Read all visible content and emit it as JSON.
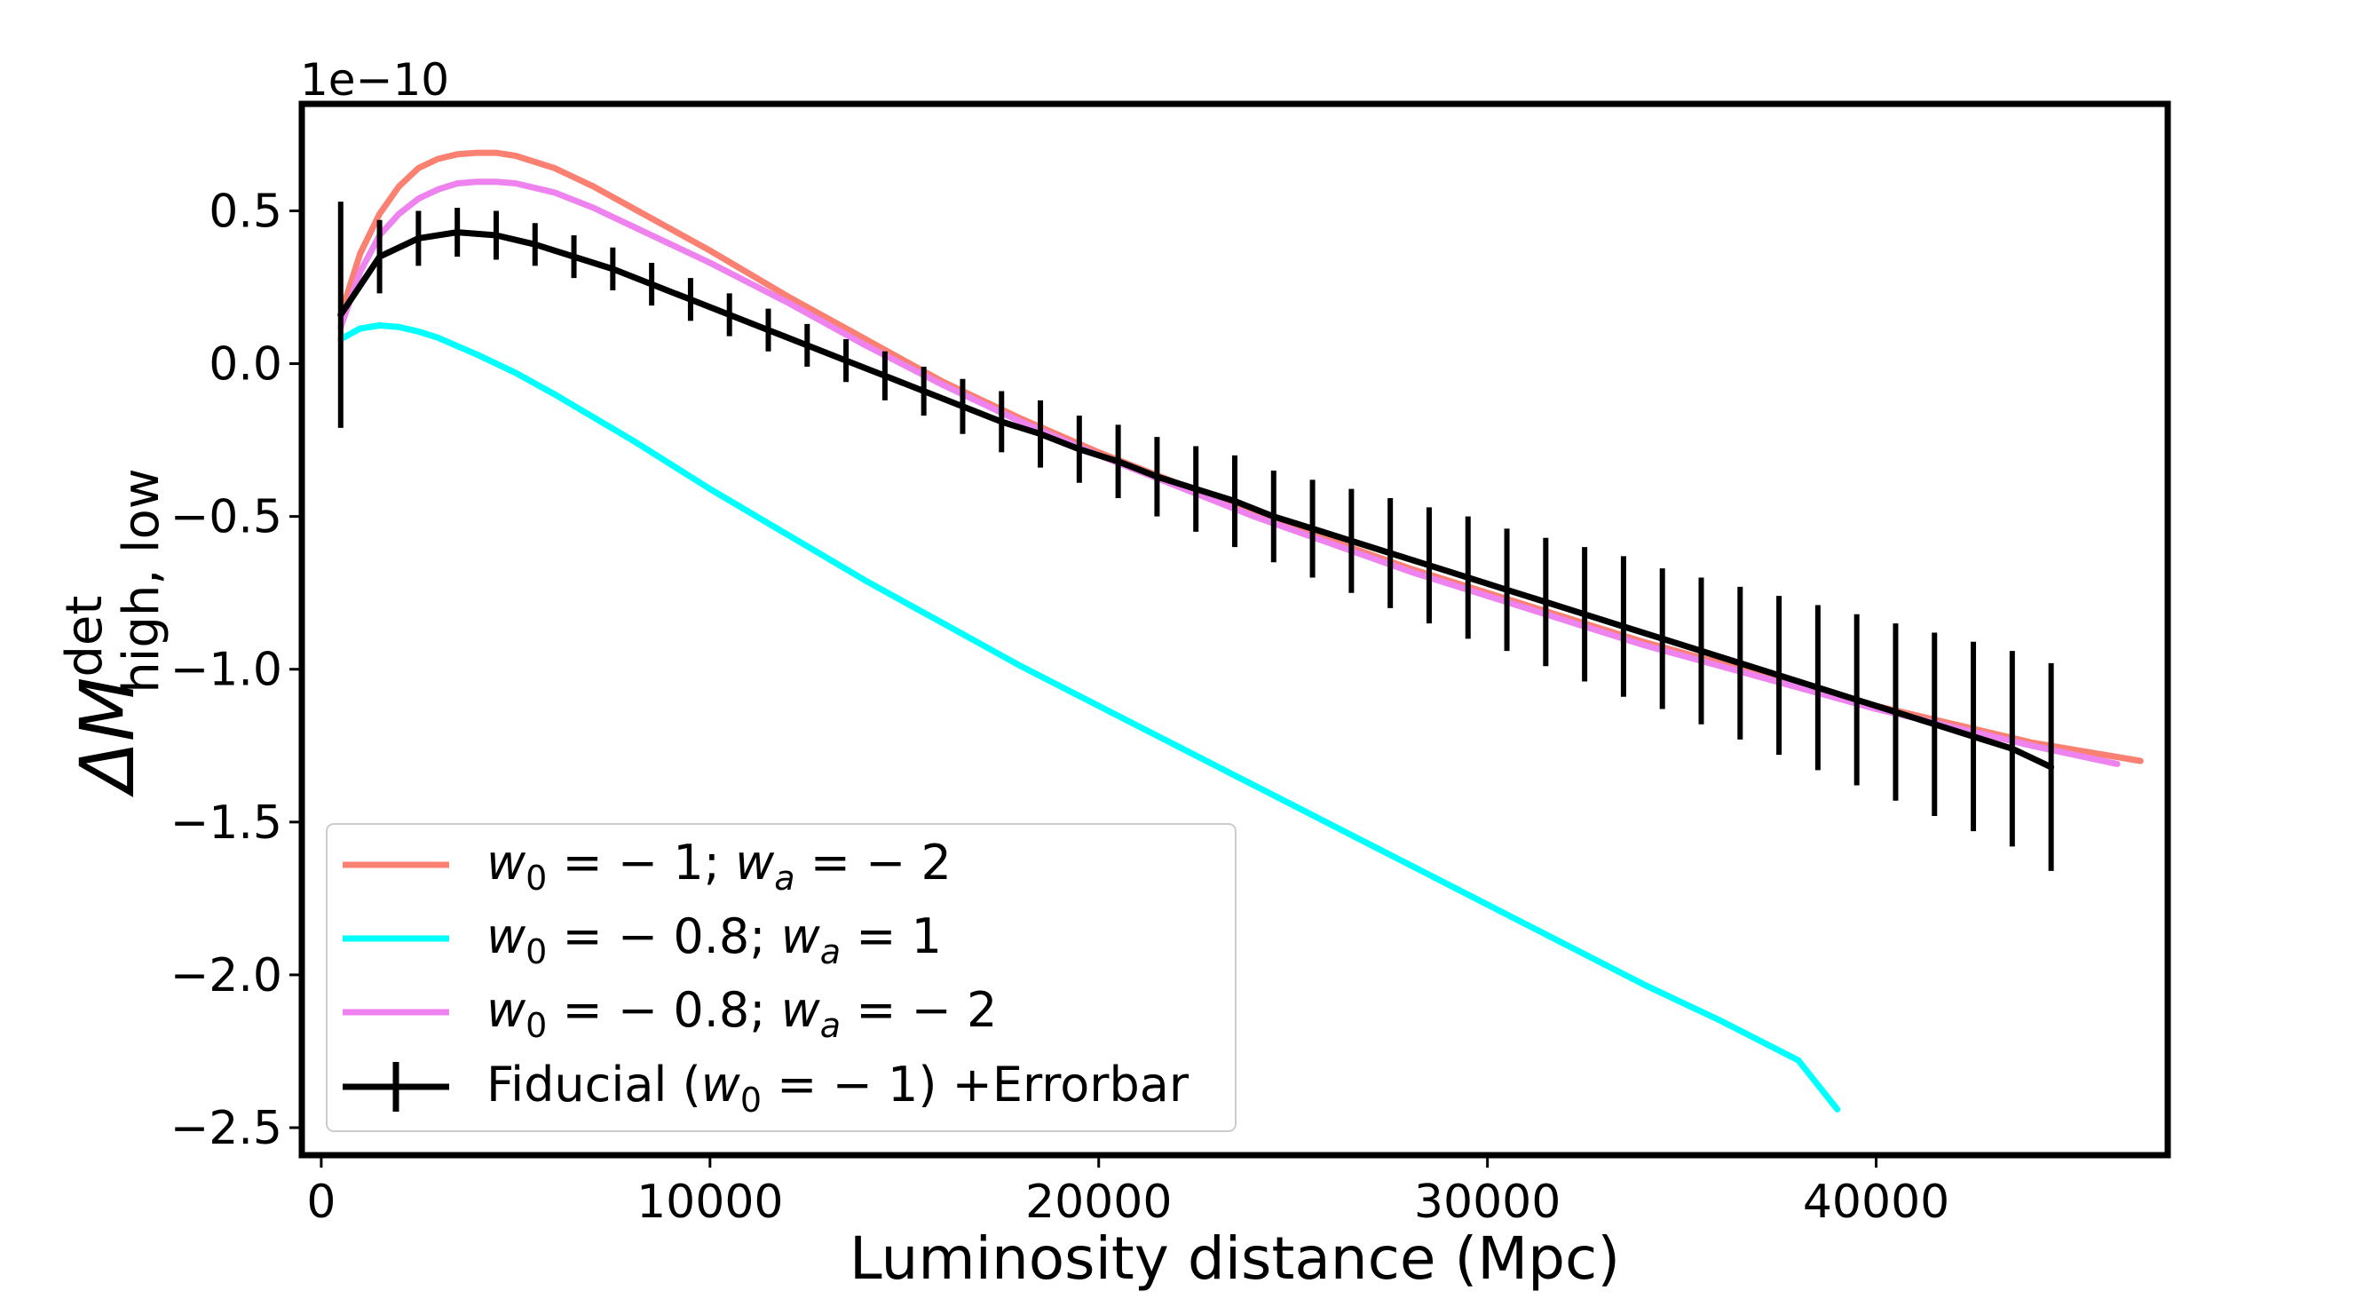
{
  "chart_data": {
    "type": "line",
    "title": "",
    "xlabel": "Luminosity distance (Mpc)",
    "ylabel": {
      "main": "ΔM",
      "superscript": "det",
      "subscript": "high, low"
    },
    "y_offset_label": "1e−10",
    "xlim": [
      -500,
      47500
    ],
    "ylim": [
      -2.59,
      0.85
    ],
    "x_ticks": [
      0,
      10000,
      20000,
      30000,
      40000
    ],
    "x_tick_labels": [
      "0",
      "10000",
      "20000",
      "30000",
      "40000"
    ],
    "y_ticks": [
      0.5,
      0.0,
      -0.5,
      -1.0,
      -1.5,
      -2.0,
      -2.5
    ],
    "y_tick_labels": [
      "0.5",
      "0.0",
      "−0.5",
      "−1.0",
      "−1.5",
      "−2.0",
      "−2.5"
    ],
    "grid": false,
    "legend_position": "lower-left",
    "series": [
      {
        "name": "w0 = −1; wa = −2",
        "legend": {
          "base": "w",
          "sub": "0",
          "mid": " = − 1; ",
          "base2": "w",
          "sub2": "a",
          "tail": " = − 2"
        },
        "color": "#fa8072",
        "x": [
          500,
          1000,
          1500,
          2000,
          2500,
          3000,
          3500,
          4000,
          4500,
          5000,
          6000,
          7000,
          8000,
          9000,
          10000,
          12000,
          14000,
          16000,
          18000,
          20000,
          22000,
          24000,
          26000,
          28000,
          30000,
          32000,
          34000,
          36000,
          38000,
          40000,
          42000,
          44000,
          46800
        ],
        "y": [
          0.16,
          0.36,
          0.49,
          0.58,
          0.64,
          0.67,
          0.685,
          0.69,
          0.69,
          0.68,
          0.64,
          0.58,
          0.51,
          0.44,
          0.37,
          0.22,
          0.08,
          -0.06,
          -0.18,
          -0.29,
          -0.39,
          -0.49,
          -0.58,
          -0.67,
          -0.75,
          -0.83,
          -0.91,
          -0.98,
          -1.05,
          -1.12,
          -1.18,
          -1.24,
          -1.3
        ]
      },
      {
        "name": "w0 = −0.8; wa = 1",
        "legend": {
          "base": "w",
          "sub": "0",
          "mid": " = − 0.8; ",
          "base2": "w",
          "sub2": "a",
          "tail": " = 1"
        },
        "color": "#00ffff",
        "x": [
          500,
          1000,
          1500,
          2000,
          2500,
          3000,
          4000,
          5000,
          6000,
          8000,
          10000,
          12000,
          14000,
          16000,
          18000,
          20000,
          22000,
          24000,
          26000,
          28000,
          30000,
          32000,
          34000,
          36000,
          38000,
          39000
        ],
        "y": [
          0.08,
          0.115,
          0.125,
          0.12,
          0.105,
          0.085,
          0.03,
          -0.03,
          -0.1,
          -0.25,
          -0.41,
          -0.56,
          -0.71,
          -0.85,
          -0.99,
          -1.12,
          -1.25,
          -1.38,
          -1.51,
          -1.64,
          -1.77,
          -1.9,
          -2.03,
          -2.15,
          -2.28,
          -2.44
        ]
      },
      {
        "name": "w0 = −0.8; wa = −2",
        "legend": {
          "base": "w",
          "sub": "0",
          "mid": " = − 0.8; ",
          "base2": "w",
          "sub2": "a",
          "tail": " = − 2"
        },
        "color": "#ee82ee",
        "x": [
          500,
          1000,
          1500,
          2000,
          2500,
          3000,
          3500,
          4000,
          4500,
          5000,
          6000,
          7000,
          8000,
          9000,
          10000,
          12000,
          14000,
          16000,
          18000,
          20000,
          22000,
          24000,
          26000,
          28000,
          30000,
          32000,
          34000,
          36000,
          38000,
          40000,
          42000,
          44000,
          46200
        ],
        "y": [
          0.12,
          0.3,
          0.42,
          0.49,
          0.54,
          0.57,
          0.59,
          0.595,
          0.595,
          0.59,
          0.56,
          0.51,
          0.45,
          0.39,
          0.33,
          0.2,
          0.06,
          -0.07,
          -0.19,
          -0.3,
          -0.4,
          -0.5,
          -0.59,
          -0.68,
          -0.76,
          -0.84,
          -0.92,
          -0.99,
          -1.06,
          -1.13,
          -1.19,
          -1.25,
          -1.31
        ]
      },
      {
        "name": "Fiducial (w0 = −1) +Errorbar",
        "legend": {
          "pre": "Fiducial (",
          "base": "w",
          "sub": "0",
          "tail": " = − 1) +Errorbar"
        },
        "color": "#000000",
        "errorbars": true,
        "x": [
          500,
          1500,
          2500,
          3500,
          4500,
          5500,
          6500,
          7500,
          8500,
          9500,
          10500,
          11500,
          12500,
          13500,
          14500,
          15500,
          16500,
          17500,
          18500,
          19500,
          20500,
          21500,
          22500,
          23500,
          24500,
          25500,
          26500,
          27500,
          28500,
          29500,
          30500,
          31500,
          32500,
          33500,
          34500,
          35500,
          36500,
          37500,
          38500,
          39500,
          40500,
          41500,
          42500,
          43500,
          44500
        ],
        "y": [
          0.16,
          0.35,
          0.41,
          0.43,
          0.42,
          0.39,
          0.35,
          0.31,
          0.26,
          0.21,
          0.16,
          0.11,
          0.06,
          0.01,
          -0.04,
          -0.09,
          -0.14,
          -0.19,
          -0.23,
          -0.28,
          -0.32,
          -0.37,
          -0.41,
          -0.45,
          -0.5,
          -0.54,
          -0.58,
          -0.62,
          -0.66,
          -0.7,
          -0.74,
          -0.78,
          -0.82,
          -0.86,
          -0.9,
          -0.94,
          -0.98,
          -1.02,
          -1.06,
          -1.1,
          -1.14,
          -1.18,
          -1.22,
          -1.26,
          -1.32
        ],
        "err": [
          0.37,
          0.12,
          0.09,
          0.08,
          0.08,
          0.07,
          0.07,
          0.07,
          0.07,
          0.07,
          0.07,
          0.07,
          0.07,
          0.07,
          0.08,
          0.08,
          0.09,
          0.1,
          0.11,
          0.11,
          0.12,
          0.13,
          0.14,
          0.15,
          0.15,
          0.16,
          0.17,
          0.18,
          0.19,
          0.2,
          0.2,
          0.21,
          0.22,
          0.23,
          0.23,
          0.24,
          0.25,
          0.26,
          0.27,
          0.28,
          0.29,
          0.3,
          0.31,
          0.32,
          0.34
        ]
      }
    ]
  }
}
